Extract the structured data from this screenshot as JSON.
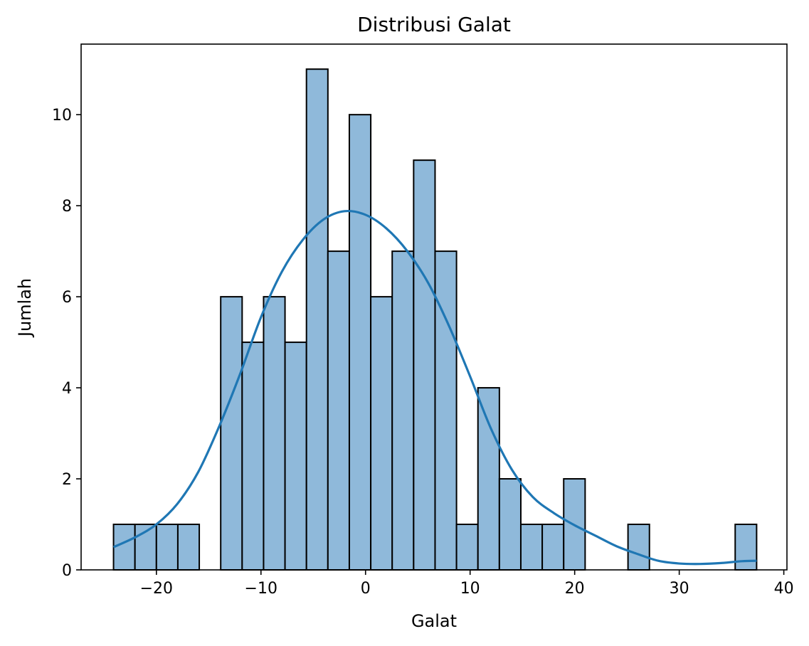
{
  "chart_data": {
    "type": "bar",
    "title": "Distribusi Galat",
    "xlabel": "Galat",
    "ylabel": "Jumlah",
    "xlim": [
      -27.2,
      40.3
    ],
    "ylim": [
      0,
      11.55
    ],
    "xticks": [
      -20,
      -10,
      0,
      10,
      20,
      30,
      40
    ],
    "xtick_labels": [
      "−20",
      "−10",
      "0",
      "10",
      "20",
      "30",
      "40"
    ],
    "yticks": [
      0,
      2,
      4,
      6,
      8,
      10
    ],
    "ytick_labels": [
      "0",
      "2",
      "4",
      "6",
      "8",
      "10"
    ],
    "grid": false,
    "bar_color": "#8fb9da",
    "edge_color": "#000000",
    "line_color": "#1f77b4",
    "bins": [
      {
        "x0": -24.1,
        "x1": -22.05,
        "count": 1
      },
      {
        "x0": -22.05,
        "x1": -20.0,
        "count": 1
      },
      {
        "x0": -20.0,
        "x1": -17.95,
        "count": 1
      },
      {
        "x0": -17.95,
        "x1": -15.9,
        "count": 1
      },
      {
        "x0": -15.9,
        "x1": -13.85,
        "count": 0
      },
      {
        "x0": -13.85,
        "x1": -11.8,
        "count": 6
      },
      {
        "x0": -11.8,
        "x1": -9.75,
        "count": 5
      },
      {
        "x0": -9.75,
        "x1": -7.7,
        "count": 6
      },
      {
        "x0": -7.7,
        "x1": -5.65,
        "count": 5
      },
      {
        "x0": -5.65,
        "x1": -3.6,
        "count": 11
      },
      {
        "x0": -3.6,
        "x1": -1.55,
        "count": 7
      },
      {
        "x0": -1.55,
        "x1": 0.5,
        "count": 10
      },
      {
        "x0": 0.5,
        "x1": 2.55,
        "count": 6
      },
      {
        "x0": 2.55,
        "x1": 4.6,
        "count": 7
      },
      {
        "x0": 4.6,
        "x1": 6.65,
        "count": 9
      },
      {
        "x0": 6.65,
        "x1": 8.7,
        "count": 7
      },
      {
        "x0": 8.7,
        "x1": 10.75,
        "count": 1
      },
      {
        "x0": 10.75,
        "x1": 12.8,
        "count": 4
      },
      {
        "x0": 12.8,
        "x1": 14.85,
        "count": 2
      },
      {
        "x0": 14.85,
        "x1": 16.9,
        "count": 1
      },
      {
        "x0": 16.9,
        "x1": 18.95,
        "count": 1
      },
      {
        "x0": 18.95,
        "x1": 21.0,
        "count": 2
      },
      {
        "x0": 21.0,
        "x1": 23.05,
        "count": 0
      },
      {
        "x0": 23.05,
        "x1": 25.1,
        "count": 0
      },
      {
        "x0": 25.1,
        "x1": 27.15,
        "count": 1
      },
      {
        "x0": 27.15,
        "x1": 29.2,
        "count": 0
      },
      {
        "x0": 29.2,
        "x1": 31.25,
        "count": 0
      },
      {
        "x0": 31.25,
        "x1": 33.3,
        "count": 0
      },
      {
        "x0": 33.3,
        "x1": 35.35,
        "count": 0
      },
      {
        "x0": 35.35,
        "x1": 37.4,
        "count": 1
      }
    ],
    "kde": [
      [
        -24.1,
        0.5
      ],
      [
        -22,
        0.72
      ],
      [
        -20,
        1.0
      ],
      [
        -18,
        1.45
      ],
      [
        -16,
        2.15
      ],
      [
        -14,
        3.15
      ],
      [
        -12,
        4.3
      ],
      [
        -10,
        5.55
      ],
      [
        -8,
        6.55
      ],
      [
        -6,
        7.25
      ],
      [
        -4,
        7.7
      ],
      [
        -2,
        7.88
      ],
      [
        0,
        7.8
      ],
      [
        2,
        7.5
      ],
      [
        4,
        7.0
      ],
      [
        6,
        6.3
      ],
      [
        8,
        5.35
      ],
      [
        10,
        4.25
      ],
      [
        12,
        3.1
      ],
      [
        14,
        2.2
      ],
      [
        16,
        1.6
      ],
      [
        18,
        1.25
      ],
      [
        20,
        0.98
      ],
      [
        22,
        0.75
      ],
      [
        24,
        0.52
      ],
      [
        26,
        0.35
      ],
      [
        28,
        0.2
      ],
      [
        30,
        0.14
      ],
      [
        32,
        0.13
      ],
      [
        34,
        0.15
      ],
      [
        36,
        0.19
      ],
      [
        37.4,
        0.2
      ]
    ]
  }
}
